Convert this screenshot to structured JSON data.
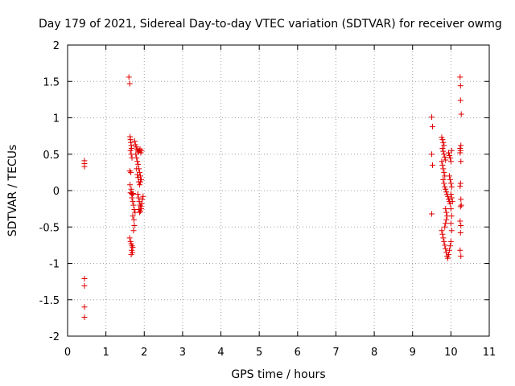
{
  "chart_data": {
    "type": "scatter",
    "title": "Day 179 of 2021, Sidereal Day-to-day VTEC variation (SDTVAR) for receiver owmg",
    "xlabel": "GPS time / hours",
    "ylabel": "SDTVAR / TECUs",
    "xlim": [
      0,
      11
    ],
    "ylim": [
      -2,
      2
    ],
    "xticks": [
      "0",
      "1",
      "2",
      "3",
      "4",
      "5",
      "6",
      "7",
      "8",
      "9",
      "10",
      "11"
    ],
    "yticks": [
      "2",
      "1.5",
      "1",
      "0.5",
      "0",
      "-0.5",
      "-1",
      "-1.5",
      "-2"
    ],
    "xtick_values": [
      0,
      1,
      2,
      3,
      4,
      5,
      6,
      7,
      8,
      9,
      10,
      11
    ],
    "ytick_values": [
      2,
      1.5,
      1,
      0.5,
      0,
      -0.5,
      -1,
      -1.5,
      -2
    ],
    "grid": true,
    "marker": "+",
    "color": "#e00000",
    "series": [
      {
        "name": "SDTVAR",
        "points": [
          [
            0.44,
            0.41
          ],
          [
            0.44,
            0.37
          ],
          [
            0.44,
            0.33
          ],
          [
            0.44,
            -1.21
          ],
          [
            0.44,
            -1.31
          ],
          [
            0.44,
            -1.6
          ],
          [
            0.44,
            -1.74
          ],
          [
            1.6,
            1.56
          ],
          [
            1.62,
            1.47
          ],
          [
            1.63,
            0.74
          ],
          [
            1.64,
            0.7
          ],
          [
            1.65,
            0.66
          ],
          [
            1.66,
            0.62
          ],
          [
            1.67,
            0.58
          ],
          [
            1.64,
            0.55
          ],
          [
            1.66,
            0.5
          ],
          [
            1.68,
            0.45
          ],
          [
            1.62,
            0.27
          ],
          [
            1.65,
            0.25
          ],
          [
            1.63,
            0.08
          ],
          [
            1.66,
            0.02
          ],
          [
            1.64,
            -0.03
          ],
          [
            1.67,
            -0.04
          ],
          [
            1.69,
            -0.05
          ],
          [
            1.71,
            -0.04
          ],
          [
            1.68,
            -0.1
          ],
          [
            1.7,
            -0.15
          ],
          [
            1.72,
            -0.2
          ],
          [
            1.74,
            -0.26
          ],
          [
            1.76,
            -0.3
          ],
          [
            1.7,
            -0.35
          ],
          [
            1.73,
            -0.4
          ],
          [
            1.74,
            -0.48
          ],
          [
            1.72,
            -0.55
          ],
          [
            1.62,
            -0.65
          ],
          [
            1.64,
            -0.7
          ],
          [
            1.66,
            -0.73
          ],
          [
            1.68,
            -0.76
          ],
          [
            1.7,
            -0.78
          ],
          [
            1.67,
            -0.82
          ],
          [
            1.69,
            -0.85
          ],
          [
            1.66,
            -0.88
          ],
          [
            1.75,
            0.68
          ],
          [
            1.77,
            0.63
          ],
          [
            1.79,
            0.6
          ],
          [
            1.81,
            0.57
          ],
          [
            1.83,
            0.55
          ],
          [
            1.85,
            0.53
          ],
          [
            1.87,
            0.55
          ],
          [
            1.89,
            0.57
          ],
          [
            1.91,
            0.52
          ],
          [
            1.93,
            0.55
          ],
          [
            1.78,
            0.5
          ],
          [
            1.8,
            0.45
          ],
          [
            1.82,
            0.4
          ],
          [
            1.84,
            0.36
          ],
          [
            1.86,
            0.3
          ],
          [
            1.88,
            0.25
          ],
          [
            1.9,
            0.2
          ],
          [
            1.92,
            0.15
          ],
          [
            1.8,
            0.3
          ],
          [
            1.82,
            0.22
          ],
          [
            1.84,
            0.18
          ],
          [
            1.86,
            0.12
          ],
          [
            1.88,
            0.08
          ],
          [
            1.9,
            0.12
          ],
          [
            1.83,
            -0.05
          ],
          [
            1.85,
            -0.1
          ],
          [
            1.87,
            -0.15
          ],
          [
            1.89,
            -0.2
          ],
          [
            1.91,
            -0.22
          ],
          [
            1.93,
            -0.18
          ],
          [
            1.95,
            -0.12
          ],
          [
            1.97,
            -0.08
          ],
          [
            1.86,
            -0.26
          ],
          [
            1.88,
            -0.3
          ],
          [
            1.9,
            -0.28
          ],
          [
            1.92,
            -0.25
          ],
          [
            9.5,
            1.01
          ],
          [
            9.52,
            0.88
          ],
          [
            9.5,
            0.5
          ],
          [
            9.52,
            0.35
          ],
          [
            9.5,
            -0.32
          ],
          [
            9.76,
            0.73
          ],
          [
            9.78,
            0.7
          ],
          [
            9.8,
            0.66
          ],
          [
            9.82,
            0.62
          ],
          [
            9.78,
            0.58
          ],
          [
            9.8,
            0.54
          ],
          [
            9.82,
            0.5
          ],
          [
            9.84,
            0.46
          ],
          [
            9.86,
            0.42
          ],
          [
            9.76,
            0.4
          ],
          [
            9.78,
            0.35
          ],
          [
            9.8,
            0.3
          ],
          [
            9.82,
            0.25
          ],
          [
            9.84,
            0.2
          ],
          [
            9.8,
            0.15
          ],
          [
            9.82,
            0.1
          ],
          [
            9.84,
            0.05
          ],
          [
            9.86,
            0.02
          ],
          [
            9.88,
            -0.02
          ],
          [
            9.9,
            -0.05
          ],
          [
            9.92,
            -0.08
          ],
          [
            9.94,
            -0.12
          ],
          [
            9.96,
            -0.15
          ],
          [
            9.98,
            -0.18
          ],
          [
            9.86,
            -0.25
          ],
          [
            9.88,
            -0.3
          ],
          [
            9.9,
            -0.35
          ],
          [
            9.88,
            -0.4
          ],
          [
            9.86,
            -0.45
          ],
          [
            9.84,
            -0.5
          ],
          [
            9.76,
            -0.55
          ],
          [
            9.78,
            -0.6
          ],
          [
            9.8,
            -0.65
          ],
          [
            9.82,
            -0.7
          ],
          [
            9.84,
            -0.75
          ],
          [
            9.86,
            -0.8
          ],
          [
            9.88,
            -0.85
          ],
          [
            9.9,
            -0.9
          ],
          [
            9.92,
            -0.93
          ],
          [
            9.94,
            -0.88
          ],
          [
            9.96,
            -0.82
          ],
          [
            9.98,
            -0.76
          ],
          [
            10.0,
            -0.7
          ],
          [
            9.94,
            0.52
          ],
          [
            9.96,
            0.48
          ],
          [
            9.98,
            0.45
          ],
          [
            10.0,
            0.4
          ],
          [
            10.02,
            0.55
          ],
          [
            9.96,
            0.2
          ],
          [
            9.98,
            0.15
          ],
          [
            10.0,
            0.1
          ],
          [
            10.02,
            0.05
          ],
          [
            10.0,
            -0.05
          ],
          [
            10.02,
            -0.1
          ],
          [
            10.04,
            -0.15
          ],
          [
            10.0,
            -0.25
          ],
          [
            10.02,
            -0.35
          ],
          [
            10.0,
            -0.45
          ],
          [
            10.02,
            -0.55
          ],
          [
            10.24,
            1.56
          ],
          [
            10.25,
            1.44
          ],
          [
            10.25,
            1.24
          ],
          [
            10.27,
            1.05
          ],
          [
            10.26,
            0.62
          ],
          [
            10.24,
            0.58
          ],
          [
            10.25,
            0.55
          ],
          [
            10.24,
            0.52
          ],
          [
            10.26,
            0.4
          ],
          [
            10.25,
            0.1
          ],
          [
            10.24,
            0.06
          ],
          [
            10.26,
            -0.12
          ],
          [
            10.27,
            -0.2
          ],
          [
            10.25,
            -0.22
          ],
          [
            10.24,
            -0.42
          ],
          [
            10.26,
            -0.48
          ],
          [
            10.25,
            -0.58
          ],
          [
            10.24,
            -0.82
          ],
          [
            10.26,
            -0.9
          ]
        ]
      }
    ]
  }
}
